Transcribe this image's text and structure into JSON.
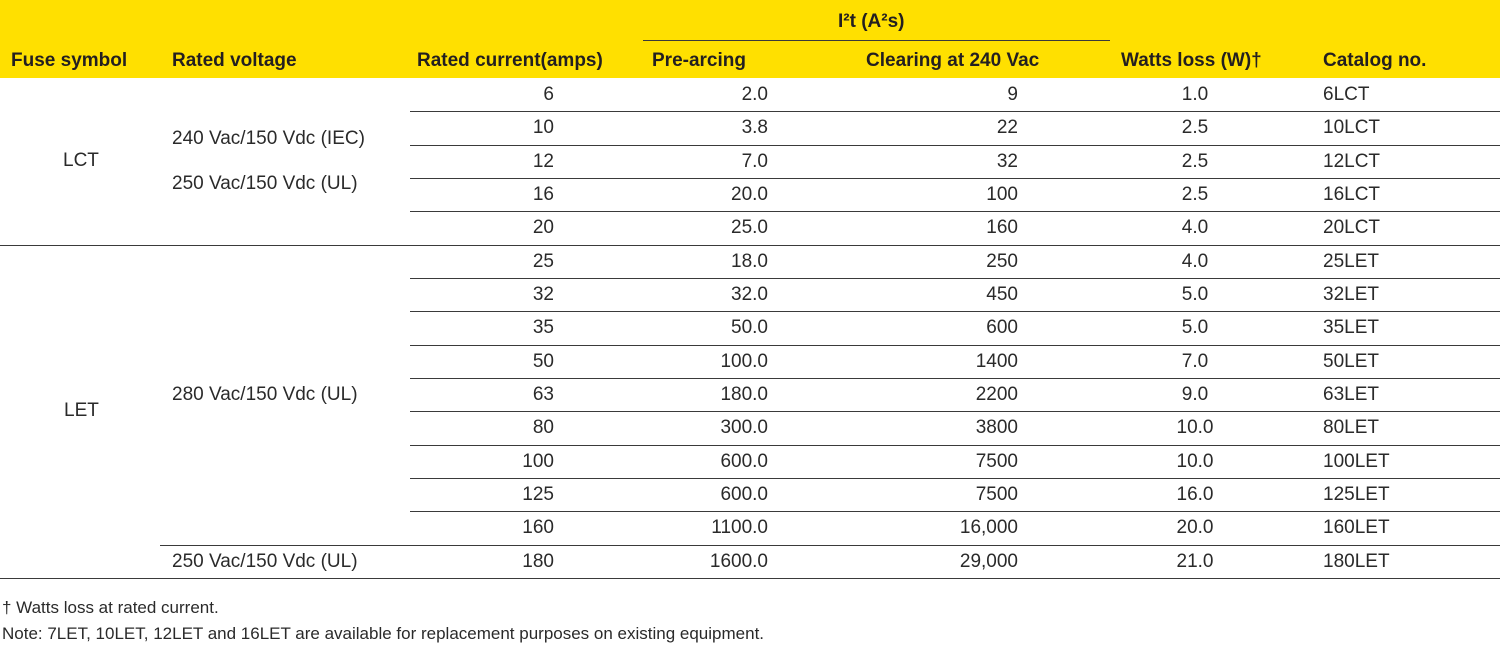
{
  "header": {
    "group_label": "I²t (A²s)",
    "columns": [
      "Fuse symbol",
      "Rated voltage",
      "Rated current(amps)",
      "Pre-arcing",
      "Clearing at 240 Vac",
      "Watts loss (W)†",
      "Catalog no."
    ]
  },
  "groups": [
    {
      "fuse_symbol": "LCT",
      "voltages": [
        "240 Vac/150 Vdc (IEC)",
        "250 Vac/150 Vdc (UL)"
      ]
    },
    {
      "fuse_symbol": "LET",
      "voltages": [
        "280 Vac/150 Vdc (UL)",
        "250 Vac/150 Vdc (UL)"
      ]
    }
  ],
  "rows": [
    {
      "current": "6",
      "pre_arcing": "2.0",
      "clearing": "9",
      "watts": "1.0",
      "catalog": "6LCT"
    },
    {
      "current": "10",
      "pre_arcing": "3.8",
      "clearing": "22",
      "watts": "2.5",
      "catalog": "10LCT"
    },
    {
      "current": "12",
      "pre_arcing": "7.0",
      "clearing": "32",
      "watts": "2.5",
      "catalog": "12LCT"
    },
    {
      "current": "16",
      "pre_arcing": "20.0",
      "clearing": "100",
      "watts": "2.5",
      "catalog": "16LCT"
    },
    {
      "current": "20",
      "pre_arcing": "25.0",
      "clearing": "160",
      "watts": "4.0",
      "catalog": "20LCT"
    },
    {
      "current": "25",
      "pre_arcing": "18.0",
      "clearing": "250",
      "watts": "4.0",
      "catalog": "25LET"
    },
    {
      "current": "32",
      "pre_arcing": "32.0",
      "clearing": "450",
      "watts": "5.0",
      "catalog": "32LET"
    },
    {
      "current": "35",
      "pre_arcing": "50.0",
      "clearing": "600",
      "watts": "5.0",
      "catalog": "35LET"
    },
    {
      "current": "50",
      "pre_arcing": "100.0",
      "clearing": "1400",
      "watts": "7.0",
      "catalog": "50LET"
    },
    {
      "current": "63",
      "pre_arcing": "180.0",
      "clearing": "2200",
      "watts": "9.0",
      "catalog": "63LET"
    },
    {
      "current": "80",
      "pre_arcing": "300.0",
      "clearing": "3800",
      "watts": "10.0",
      "catalog": "80LET"
    },
    {
      "current": "100",
      "pre_arcing": "600.0",
      "clearing": "7500",
      "watts": "10.0",
      "catalog": "100LET"
    },
    {
      "current": "125",
      "pre_arcing": "600.0",
      "clearing": "7500",
      "watts": "16.0",
      "catalog": "125LET"
    },
    {
      "current": "160",
      "pre_arcing": "1100.0",
      "clearing": "16,000",
      "watts": "20.0",
      "catalog": "160LET"
    },
    {
      "current": "180",
      "pre_arcing": "1600.0",
      "clearing": "29,000",
      "watts": "21.0",
      "catalog": "180LET"
    }
  ],
  "footnotes": {
    "dagger": "†  Watts loss at rated current.",
    "note": "Note: 7LET, 10LET, 12LET and 16LET are available for replacement purposes on existing equipment."
  }
}
